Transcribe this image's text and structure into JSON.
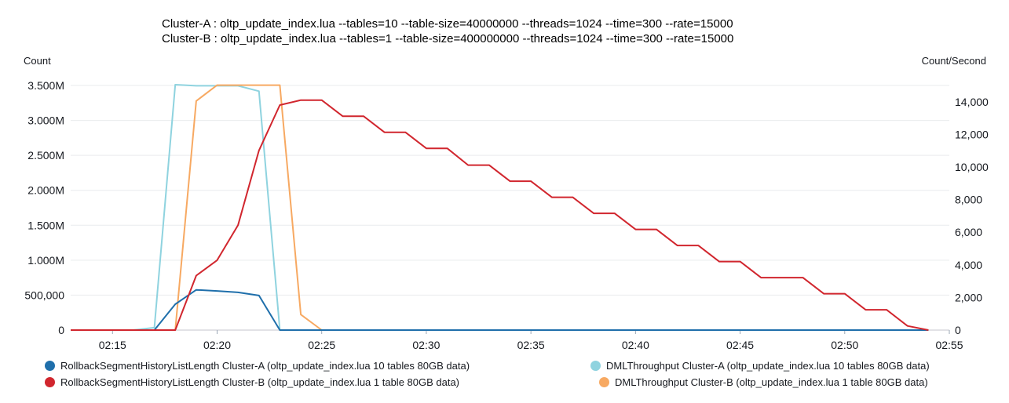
{
  "chart_data": {
    "type": "line",
    "title_lines": [
      "Cluster-A : oltp_update_index.lua --tables=10 --table-size=40000000 --threads=1024 --time=300 --rate=15000",
      "Cluster-B : oltp_update_index.lua --tables=1 --table-size=400000000 --threads=1024 --time=300 --rate=15000"
    ],
    "left_axis": {
      "label": "Count",
      "ylim": [
        0,
        3500000
      ],
      "ticks": [
        0,
        500000,
        1000000,
        1500000,
        2000000,
        2500000,
        3000000,
        3500000
      ],
      "tick_labels": [
        "0",
        "500,000",
        "1.000M",
        "1.500M",
        "2.000M",
        "2.500M",
        "3.000M",
        "3.500M"
      ]
    },
    "right_axis": {
      "label": "Count/Second",
      "ylim": [
        0,
        15000
      ],
      "ticks": [
        0,
        2000,
        4000,
        6000,
        8000,
        10000,
        12000,
        14000
      ],
      "tick_labels": [
        "0",
        "2,000",
        "4,000",
        "6,000",
        "8,000",
        "10,000",
        "12,000",
        "14,000"
      ]
    },
    "x_axis": {
      "label": "",
      "xlim": [
        "02:13",
        "02:55"
      ],
      "ticks": [
        "02:15",
        "02:20",
        "02:25",
        "02:30",
        "02:35",
        "02:40",
        "02:45",
        "02:50",
        "02:55"
      ]
    },
    "grid": true,
    "legend_position": "bottom",
    "series": [
      {
        "name": "RollbackSegmentHistoryListLength Cluster-A (oltp_update_index.lua 10 tables 80GB data)",
        "axis": "left",
        "color": "#1f6fab",
        "x": [
          "02:13",
          "02:14",
          "02:15",
          "02:16",
          "02:17",
          "02:18",
          "02:19",
          "02:20",
          "02:21",
          "02:22",
          "02:23",
          "02:24",
          "02:25",
          "02:30",
          "02:35",
          "02:40",
          "02:45",
          "02:50",
          "02:54"
        ],
        "y": [
          0,
          0,
          0,
          0,
          0,
          370000,
          575000,
          560000,
          540000,
          495000,
          0,
          0,
          0,
          0,
          0,
          0,
          0,
          0,
          0
        ]
      },
      {
        "name": "DMLThroughput Cluster-A (oltp_update_index.lua 10 tables 80GB data)",
        "axis": "right",
        "color": "#8fd3df",
        "x": [
          "02:13",
          "02:14",
          "02:15",
          "02:16",
          "02:17",
          "02:18",
          "02:19",
          "02:20",
          "02:21",
          "02:22",
          "02:23",
          "02:24",
          "02:25",
          "02:30",
          "02:35",
          "02:40",
          "02:45",
          "02:50",
          "02:54"
        ],
        "y": [
          0,
          0,
          0,
          0,
          150,
          15050,
          14980,
          14980,
          14980,
          14650,
          0,
          0,
          0,
          0,
          0,
          0,
          0,
          0,
          0
        ]
      },
      {
        "name": "RollbackSegmentHistoryListLength Cluster-B (oltp_update_index.lua 1 table 80GB data)",
        "axis": "left",
        "color": "#d1262e",
        "x": [
          "02:13",
          "02:14",
          "02:15",
          "02:16",
          "02:17",
          "02:18",
          "02:19",
          "02:20",
          "02:21",
          "02:22",
          "02:23",
          "02:24",
          "02:25",
          "02:26",
          "02:27",
          "02:28",
          "02:29",
          "02:30",
          "02:31",
          "02:32",
          "02:33",
          "02:34",
          "02:35",
          "02:36",
          "02:37",
          "02:38",
          "02:39",
          "02:40",
          "02:41",
          "02:42",
          "02:43",
          "02:44",
          "02:45",
          "02:46",
          "02:47",
          "02:48",
          "02:49",
          "02:50",
          "02:51",
          "02:52",
          "02:53",
          "02:54"
        ],
        "y": [
          0,
          0,
          0,
          0,
          0,
          0,
          780000,
          1000000,
          1500000,
          2570000,
          3220000,
          3290000,
          3290000,
          3060000,
          3060000,
          2830000,
          2830000,
          2600000,
          2600000,
          2360000,
          2360000,
          2130000,
          2130000,
          1900000,
          1900000,
          1670000,
          1670000,
          1440000,
          1440000,
          1210000,
          1210000,
          980000,
          980000,
          750000,
          750000,
          750000,
          520000,
          520000,
          290000,
          290000,
          60000,
          0
        ]
      },
      {
        "name": "DMLThroughput Cluster-B (oltp_update_index.lua 1 table 80GB data)",
        "axis": "right",
        "color": "#f7a962",
        "x": [
          "02:13",
          "02:14",
          "02:15",
          "02:16",
          "02:17",
          "02:18",
          "02:19",
          "02:20",
          "02:21",
          "02:22",
          "02:23",
          "02:24",
          "02:25",
          "02:30",
          "02:35",
          "02:40",
          "02:45",
          "02:50",
          "02:54"
        ],
        "y": [
          0,
          0,
          0,
          0,
          0,
          0,
          14050,
          15020,
          15020,
          15020,
          15020,
          950,
          0,
          0,
          0,
          0,
          0,
          0,
          0
        ]
      }
    ]
  }
}
